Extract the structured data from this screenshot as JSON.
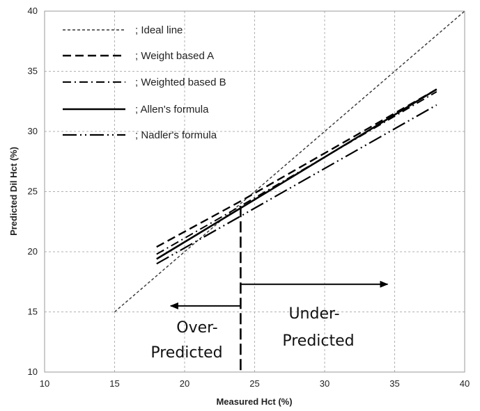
{
  "chart_data": {
    "type": "line",
    "xlabel": "Measured Hct (%)",
    "ylabel": "Predicted Dil Hct (%)",
    "xlim": [
      10,
      40
    ],
    "ylim": [
      10,
      40
    ],
    "x_ticks": [
      10,
      15,
      20,
      25,
      30,
      35,
      40
    ],
    "y_ticks": [
      10,
      15,
      20,
      25,
      30,
      35,
      40
    ],
    "grid": true,
    "legend_position": "top-left",
    "series": [
      {
        "name": "; Ideal line",
        "dash": "short-dash",
        "color": "#333333",
        "x": [
          15,
          40
        ],
        "y": [
          15,
          40
        ]
      },
      {
        "name": "; Weight based A",
        "dash": "dash",
        "color": "#000000",
        "x": [
          18,
          24,
          38
        ],
        "y": [
          20.4,
          24.2,
          33.5
        ]
      },
      {
        "name": "; Weighted based B",
        "dash": "dash-dot",
        "color": "#000000",
        "x": [
          18,
          24,
          38
        ],
        "y": [
          19.8,
          23.8,
          33.3
        ]
      },
      {
        "name": "; Allen's formula",
        "dash": "solid",
        "color": "#000000",
        "x": [
          18,
          38
        ],
        "y": [
          19.4,
          33.5
        ]
      },
      {
        "name": "; Nadler's formula",
        "dash": "long-dash-dot-dot",
        "color": "#000000",
        "x": [
          18,
          38
        ],
        "y": [
          19.0,
          32.2
        ]
      }
    ],
    "divider": {
      "x": 24,
      "y_from": 10,
      "y_to": 23.8
    },
    "arrows": [
      {
        "direction": "left",
        "y": 15.5,
        "x_from": 24,
        "x_to": 19
      },
      {
        "direction": "right",
        "y": 17.3,
        "x_from": 24,
        "x_to": 34.5
      }
    ],
    "annotations": {
      "over": [
        "Over-",
        "Predicted"
      ],
      "under": [
        "Under-",
        "Predicted"
      ]
    }
  }
}
